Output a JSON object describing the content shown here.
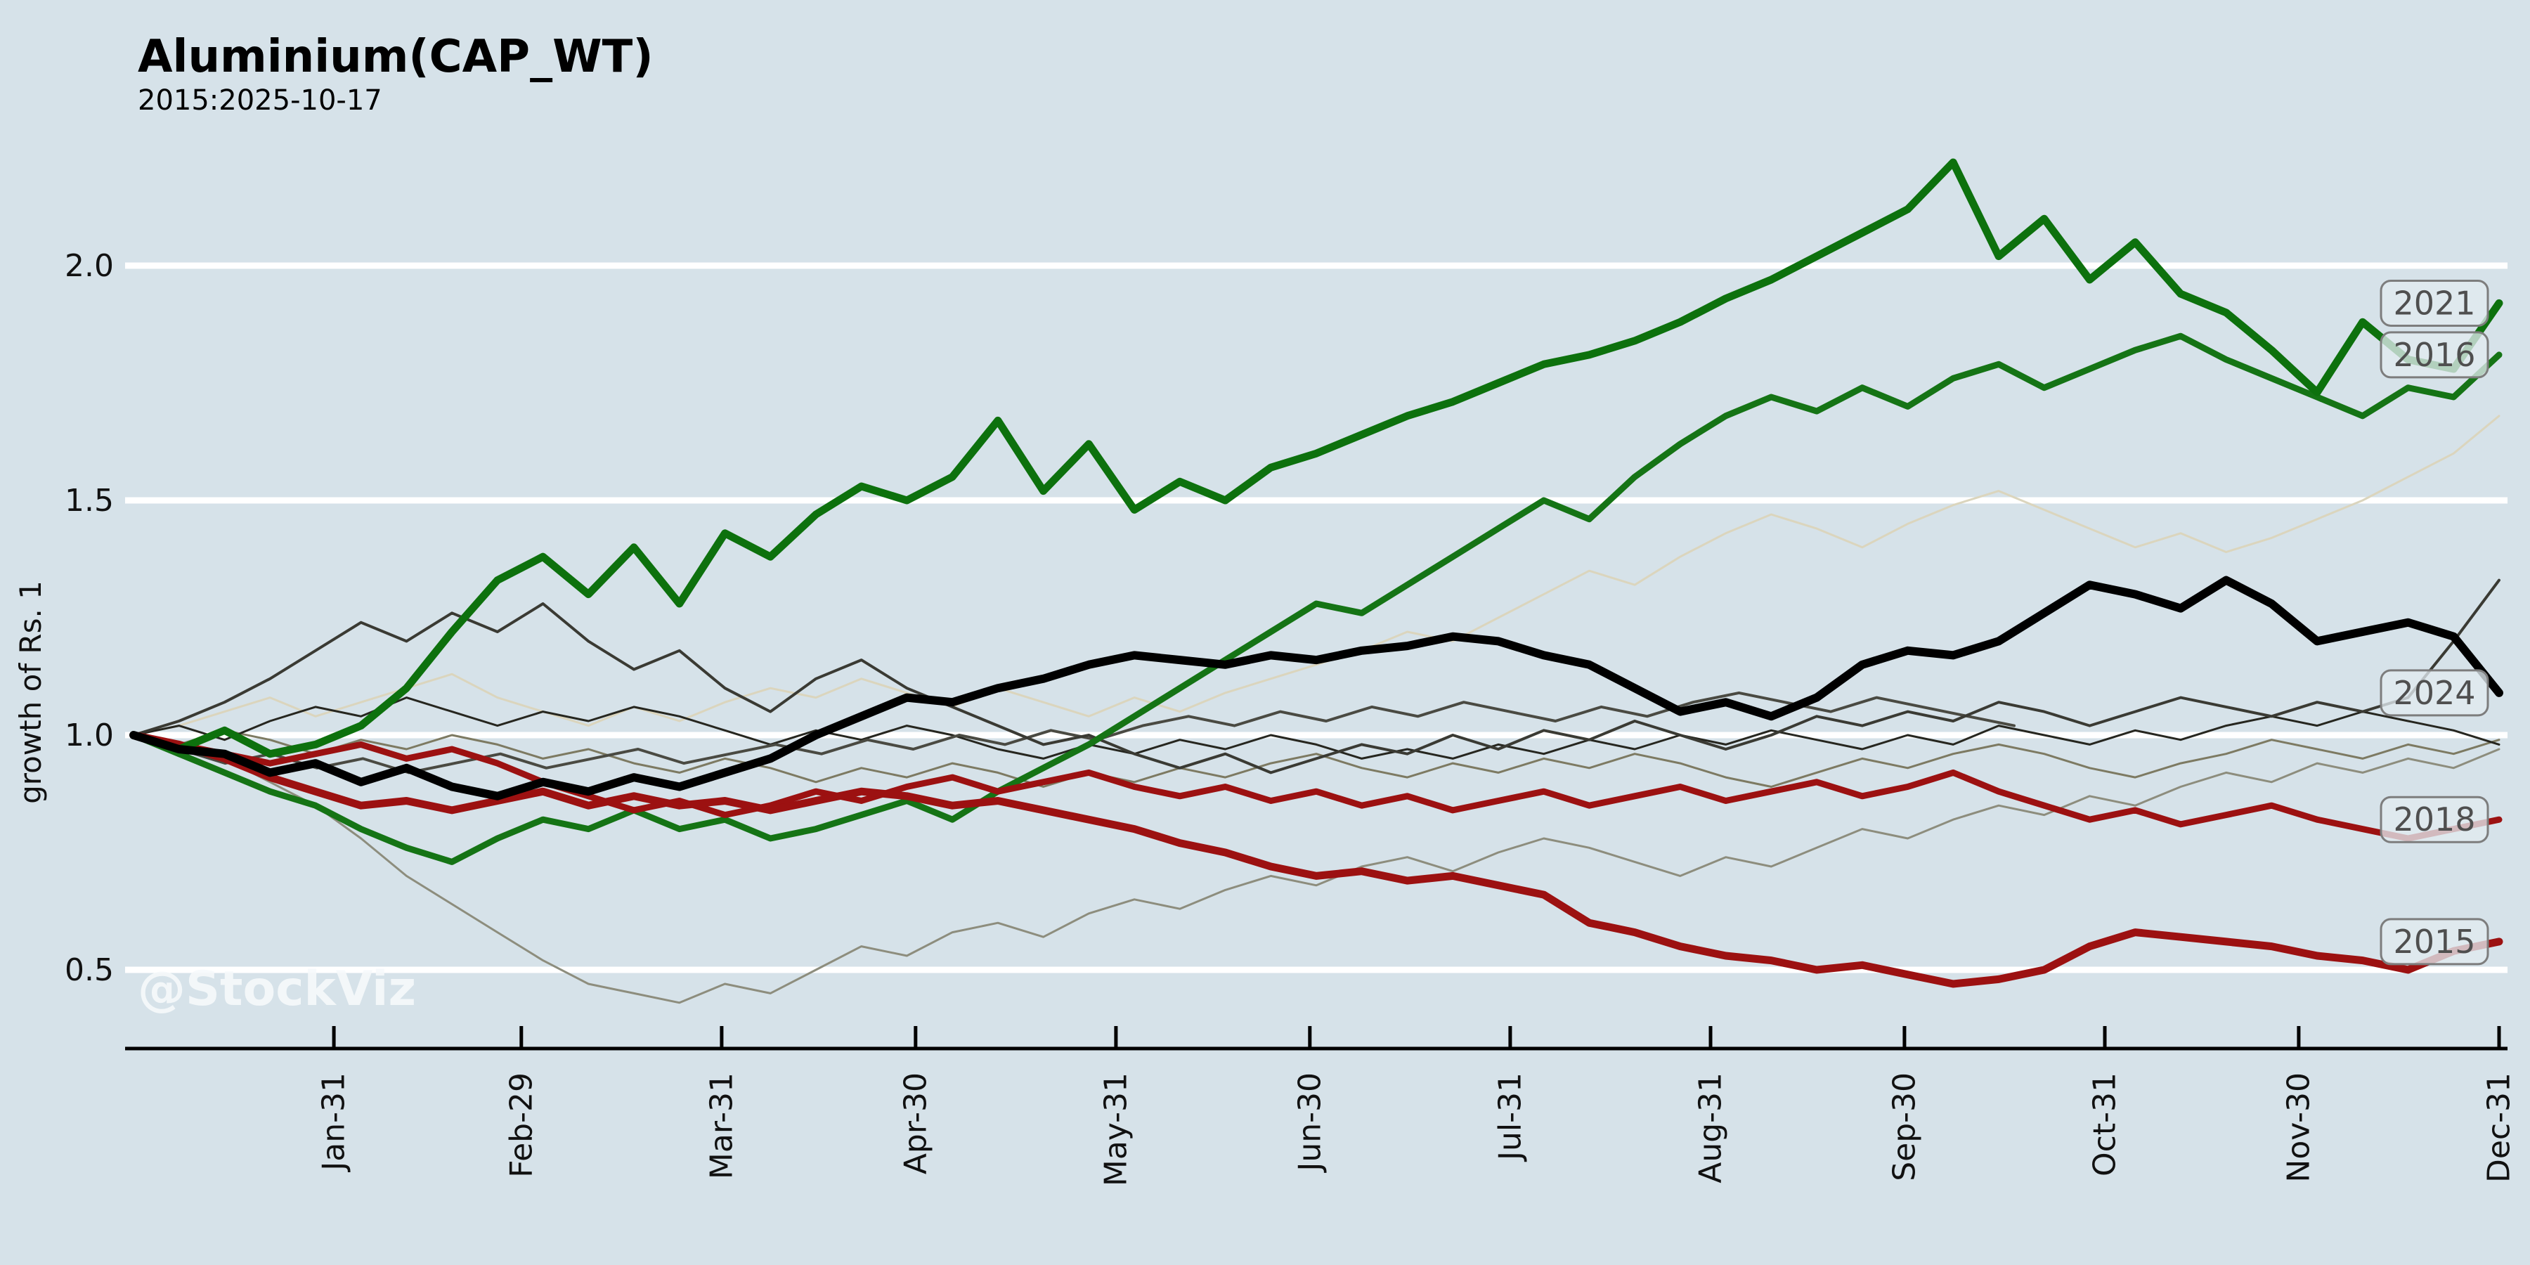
{
  "chart_data": {
    "type": "line",
    "title": "Aluminium(CAP_WT)",
    "subtitle": "2015:2025-10-17",
    "ylabel": "growth of Rs. 1",
    "watermark": "@StockViz",
    "grid": true,
    "legend_position": "line-end-labels-right",
    "ylim": [
      0.33,
      2.35
    ],
    "colors": {
      "background": "#d6e2e9",
      "gridline": "#ffffff",
      "axis": "#000000",
      "green_thick": "#0d710d",
      "green_medium": "#157415",
      "black_thick": "#000000",
      "red_medium": "#9c1111",
      "red_thick": "#9c1111",
      "label_box_border": "#7d7d7d",
      "label_box_fill": "rgba(226,235,240,0.78)",
      "label_text": "#4f4f4f"
    },
    "y_ticks": [
      {
        "label": "0.5",
        "value": 0.5
      },
      {
        "label": "1.0",
        "value": 1.0
      },
      {
        "label": "1.5",
        "value": 1.5
      },
      {
        "label": "2.0",
        "value": 2.0
      }
    ],
    "x_ticks": [
      {
        "label": "Jan-31",
        "day": 31
      },
      {
        "label": "Feb-29",
        "day": 60
      },
      {
        "label": "Mar-31",
        "day": 91
      },
      {
        "label": "Apr-30",
        "day": 121
      },
      {
        "label": "May-31",
        "day": 152
      },
      {
        "label": "Jun-30",
        "day": 182
      },
      {
        "label": "Jul-31",
        "day": 213
      },
      {
        "label": "Aug-31",
        "day": 244
      },
      {
        "label": "Sep-30",
        "day": 274
      },
      {
        "label": "Oct-31",
        "day": 305
      },
      {
        "label": "Nov-30",
        "day": 335
      },
      {
        "label": "Dec-31",
        "day": 366
      }
    ],
    "days_in_year": 366,
    "series": [
      {
        "name": "unlabeled-1",
        "label": null,
        "color": "#8d8d7d",
        "width": 3,
        "values": [
          1.0,
          0.98,
          0.95,
          0.9,
          0.85,
          0.78,
          0.7,
          0.64,
          0.58,
          0.52,
          0.47,
          0.45,
          0.43,
          0.47,
          0.45,
          0.5,
          0.55,
          0.53,
          0.58,
          0.6,
          0.57,
          0.62,
          0.65,
          0.63,
          0.67,
          0.7,
          0.68,
          0.72,
          0.74,
          0.71,
          0.75,
          0.78,
          0.76,
          0.73,
          0.7,
          0.74,
          0.72,
          0.76,
          0.8,
          0.78,
          0.82,
          0.85,
          0.83,
          0.87,
          0.85,
          0.89,
          0.92,
          0.9,
          0.94,
          0.92,
          0.95,
          0.93,
          0.97
        ]
      },
      {
        "name": "unlabeled-2",
        "label": null,
        "color": "#dbd5bd",
        "width": 3,
        "values": [
          1.0,
          1.02,
          1.05,
          1.08,
          1.04,
          1.07,
          1.1,
          1.13,
          1.08,
          1.05,
          1.02,
          1.06,
          1.03,
          1.07,
          1.1,
          1.08,
          1.12,
          1.09,
          1.06,
          1.1,
          1.07,
          1.04,
          1.08,
          1.05,
          1.09,
          1.12,
          1.15,
          1.18,
          1.22,
          1.2,
          1.25,
          1.3,
          1.35,
          1.32,
          1.38,
          1.43,
          1.47,
          1.44,
          1.4,
          1.45,
          1.49,
          1.52,
          1.48,
          1.44,
          1.4,
          1.43,
          1.39,
          1.42,
          1.46,
          1.5,
          1.55,
          1.6,
          1.68
        ]
      },
      {
        "name": "unlabeled-3",
        "label": null,
        "color": "#7d7a62",
        "width": 3,
        "values": [
          1.0,
          0.98,
          1.01,
          0.99,
          0.96,
          0.99,
          0.97,
          1.0,
          0.98,
          0.95,
          0.97,
          0.94,
          0.92,
          0.95,
          0.93,
          0.9,
          0.93,
          0.91,
          0.94,
          0.92,
          0.89,
          0.92,
          0.9,
          0.93,
          0.91,
          0.94,
          0.96,
          0.93,
          0.91,
          0.94,
          0.92,
          0.95,
          0.93,
          0.96,
          0.94,
          0.91,
          0.89,
          0.92,
          0.95,
          0.93,
          0.96,
          0.98,
          0.96,
          0.93,
          0.91,
          0.94,
          0.96,
          0.99,
          0.97,
          0.95,
          0.98,
          0.96,
          0.99
        ]
      },
      {
        "name": "unlabeled-4",
        "label": null,
        "color": "#26261f",
        "width": 3,
        "values": [
          1.0,
          1.02,
          0.99,
          1.03,
          1.06,
          1.04,
          1.08,
          1.05,
          1.02,
          1.05,
          1.03,
          1.06,
          1.04,
          1.01,
          0.98,
          1.01,
          0.99,
          1.02,
          1.0,
          0.97,
          0.95,
          0.98,
          0.96,
          0.99,
          0.97,
          1.0,
          0.98,
          0.95,
          0.97,
          0.95,
          0.98,
          0.96,
          0.99,
          0.97,
          1.0,
          0.98,
          1.01,
          0.99,
          0.97,
          1.0,
          0.98,
          1.02,
          1.0,
          0.98,
          1.01,
          0.99,
          1.02,
          1.04,
          1.02,
          1.05,
          1.03,
          1.01,
          0.98
        ]
      },
      {
        "name": "unlabeled-5",
        "label": null,
        "color": "#4a4a42",
        "width": 4,
        "end_frac": 0.795,
        "values": [
          1.0,
          0.97,
          0.94,
          0.96,
          0.93,
          0.95,
          0.92,
          0.94,
          0.96,
          0.93,
          0.95,
          0.97,
          0.94,
          0.96,
          0.98,
          0.96,
          0.99,
          0.97,
          1.0,
          0.98,
          1.01,
          0.99,
          1.02,
          1.04,
          1.02,
          1.05,
          1.03,
          1.06,
          1.04,
          1.07,
          1.05,
          1.03,
          1.06,
          1.04,
          1.07,
          1.09,
          1.07,
          1.05,
          1.08,
          1.06,
          1.04,
          1.02
        ]
      },
      {
        "name": "unlabeled-6",
        "label": null,
        "color": "#3a3a33",
        "width": 4,
        "values": [
          1.0,
          1.03,
          1.07,
          1.12,
          1.18,
          1.24,
          1.2,
          1.26,
          1.22,
          1.28,
          1.2,
          1.14,
          1.18,
          1.1,
          1.05,
          1.12,
          1.16,
          1.1,
          1.06,
          1.02,
          0.98,
          1.0,
          0.96,
          0.93,
          0.96,
          0.92,
          0.95,
          0.98,
          0.96,
          1.0,
          0.97,
          1.01,
          0.99,
          1.03,
          1.0,
          0.97,
          1.0,
          1.04,
          1.02,
          1.05,
          1.03,
          1.07,
          1.05,
          1.02,
          1.05,
          1.08,
          1.06,
          1.04,
          1.07,
          1.05,
          1.08,
          1.2,
          1.33
        ]
      },
      {
        "name": "2016",
        "label": "2016",
        "color": "#157415",
        "width": 9,
        "values": [
          1.0,
          0.96,
          0.92,
          0.88,
          0.85,
          0.8,
          0.76,
          0.73,
          0.78,
          0.82,
          0.8,
          0.84,
          0.8,
          0.82,
          0.78,
          0.8,
          0.83,
          0.86,
          0.82,
          0.88,
          0.93,
          0.98,
          1.04,
          1.1,
          1.16,
          1.22,
          1.28,
          1.26,
          1.32,
          1.38,
          1.44,
          1.5,
          1.46,
          1.55,
          1.62,
          1.68,
          1.72,
          1.69,
          1.74,
          1.7,
          1.76,
          1.79,
          1.74,
          1.78,
          1.82,
          1.85,
          1.8,
          1.76,
          1.72,
          1.68,
          1.74,
          1.72,
          1.81
        ]
      },
      {
        "name": "2018",
        "label": "2018",
        "color": "#9c1111",
        "width": 9,
        "values": [
          1.0,
          0.98,
          0.96,
          0.94,
          0.96,
          0.98,
          0.95,
          0.97,
          0.94,
          0.9,
          0.87,
          0.84,
          0.86,
          0.83,
          0.85,
          0.88,
          0.86,
          0.89,
          0.91,
          0.88,
          0.9,
          0.92,
          0.89,
          0.87,
          0.89,
          0.86,
          0.88,
          0.85,
          0.87,
          0.84,
          0.86,
          0.88,
          0.85,
          0.87,
          0.89,
          0.86,
          0.88,
          0.9,
          0.87,
          0.89,
          0.92,
          0.88,
          0.85,
          0.82,
          0.84,
          0.81,
          0.83,
          0.85,
          0.82,
          0.8,
          0.78,
          0.8,
          0.82
        ]
      },
      {
        "name": "2015",
        "label": "2015",
        "color": "#9c1111",
        "width": 11,
        "values": [
          1.0,
          0.98,
          0.95,
          0.91,
          0.88,
          0.85,
          0.86,
          0.84,
          0.86,
          0.88,
          0.85,
          0.87,
          0.85,
          0.86,
          0.84,
          0.86,
          0.88,
          0.87,
          0.85,
          0.86,
          0.84,
          0.82,
          0.8,
          0.77,
          0.75,
          0.72,
          0.7,
          0.71,
          0.69,
          0.7,
          0.68,
          0.66,
          0.6,
          0.58,
          0.55,
          0.53,
          0.52,
          0.5,
          0.51,
          0.49,
          0.47,
          0.48,
          0.5,
          0.55,
          0.58,
          0.57,
          0.56,
          0.55,
          0.53,
          0.52,
          0.5,
          0.54,
          0.56
        ]
      },
      {
        "name": "2021",
        "label": "2021",
        "color": "#0d710d",
        "width": 11,
        "values": [
          1.0,
          0.97,
          1.01,
          0.96,
          0.98,
          1.02,
          1.1,
          1.22,
          1.33,
          1.38,
          1.3,
          1.4,
          1.28,
          1.43,
          1.38,
          1.47,
          1.53,
          1.5,
          1.55,
          1.67,
          1.52,
          1.62,
          1.48,
          1.54,
          1.5,
          1.57,
          1.6,
          1.64,
          1.68,
          1.71,
          1.75,
          1.79,
          1.81,
          1.84,
          1.88,
          1.93,
          1.97,
          2.02,
          2.07,
          2.12,
          2.22,
          2.02,
          2.1,
          1.97,
          2.05,
          1.94,
          1.9,
          1.82,
          1.73,
          1.88,
          1.8,
          1.78,
          1.92
        ]
      },
      {
        "name": "2024",
        "label": "2024",
        "color": "#000000",
        "width": 12,
        "values": [
          1.0,
          0.97,
          0.96,
          0.92,
          0.94,
          0.9,
          0.93,
          0.89,
          0.87,
          0.9,
          0.88,
          0.91,
          0.89,
          0.92,
          0.95,
          1.0,
          1.04,
          1.08,
          1.07,
          1.1,
          1.12,
          1.15,
          1.17,
          1.16,
          1.15,
          1.17,
          1.16,
          1.18,
          1.19,
          1.21,
          1.2,
          1.17,
          1.15,
          1.1,
          1.05,
          1.07,
          1.04,
          1.08,
          1.15,
          1.18,
          1.17,
          1.2,
          1.26,
          1.32,
          1.3,
          1.27,
          1.33,
          1.28,
          1.2,
          1.22,
          1.24,
          1.21,
          1.09
        ]
      }
    ]
  }
}
